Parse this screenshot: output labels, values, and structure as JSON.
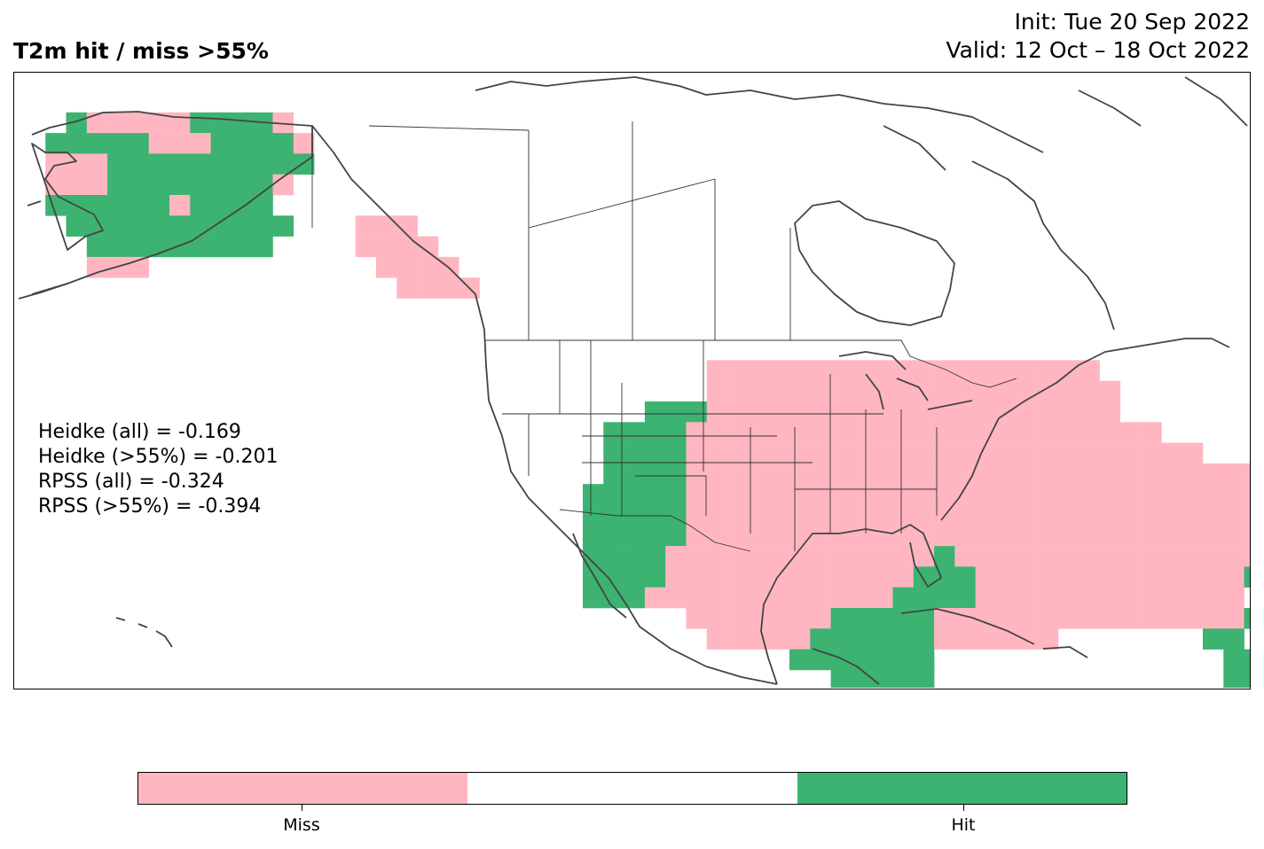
{
  "title": "T2m hit / miss  >55%",
  "init": "Init: Tue 20 Sep 2022",
  "valid": "Valid: 12 Oct – 18 Oct 2022",
  "stats": [
    "Heidke (all) = -0.169",
    "Heidke (>55%) = -0.201",
    "RPSS (all) = -0.324",
    "RPSS (>55%) = -0.394"
  ],
  "legend": {
    "items": [
      {
        "label": "Miss",
        "color": "#ffb6c1"
      },
      {
        "label": "",
        "color": "#ffffff"
      },
      {
        "label": "Hit",
        "color": "#3cb371"
      }
    ]
  },
  "colors": {
    "miss": "#ffb6c1",
    "hit": "#3cb371",
    "coast": "#444444",
    "border": "#333333"
  }
}
